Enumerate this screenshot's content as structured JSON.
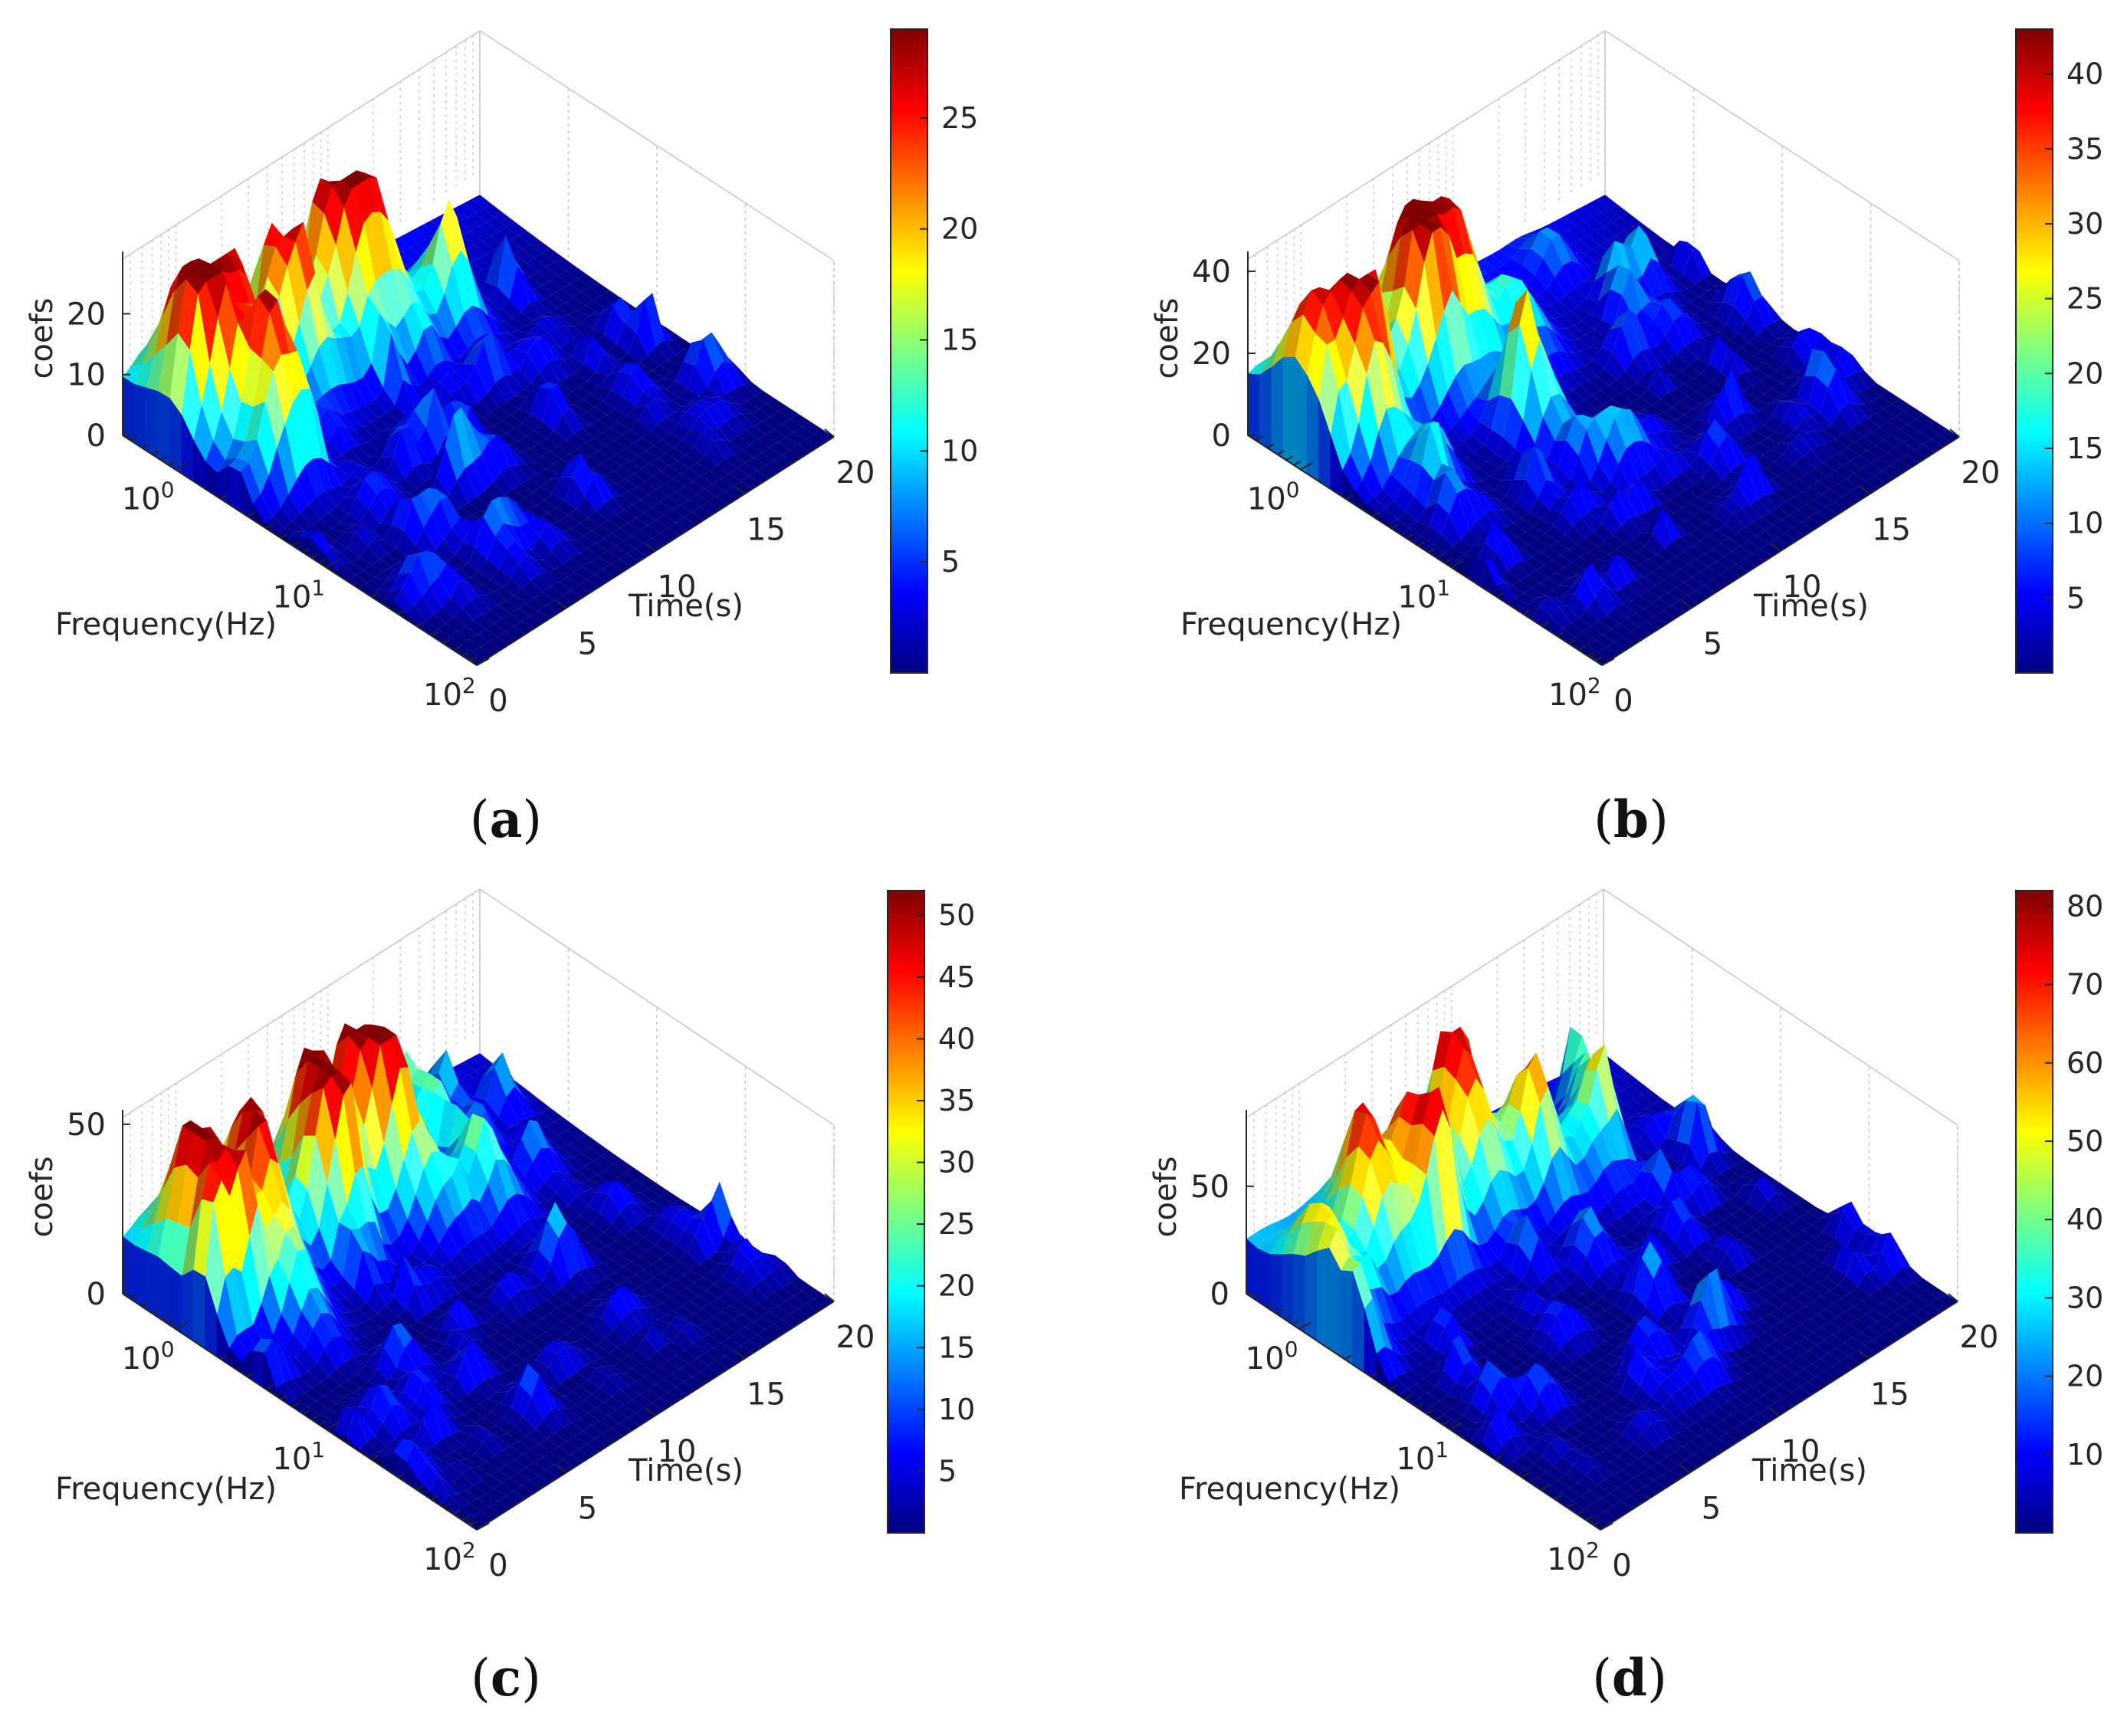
{
  "colormap": "jet",
  "jet_stops": [
    "#00007f",
    "#0000ff",
    "#007fff",
    "#00ffff",
    "#7fff7f",
    "#ffff00",
    "#ff7f00",
    "#ff0000",
    "#7f0000"
  ],
  "chart_data": [
    {
      "type": "surface",
      "panel_label": "a",
      "xlabel": "Time(s)",
      "ylabel": "Frequency(Hz)",
      "zlabel": "coefs",
      "x_ticks": [
        "0",
        "5",
        "10",
        "15",
        "20"
      ],
      "xlim": [
        0,
        20
      ],
      "y_scale": "log",
      "y_ticks": [
        {
          "base": "10",
          "exp": "0"
        },
        {
          "base": "10",
          "exp": "1"
        },
        {
          "base": "10",
          "exp": "2"
        }
      ],
      "z_ticks": [
        "0",
        "10",
        "20"
      ],
      "zlim": [
        0,
        29
      ],
      "colorbar": {
        "ticks": [
          "5",
          "10",
          "15",
          "20",
          "25"
        ],
        "range": [
          0,
          29
        ]
      },
      "ridges": [
        {
          "t": 1.5,
          "f": 0.9,
          "z": 28
        },
        {
          "t": 3.5,
          "f": 0.95,
          "z": 22
        },
        {
          "t": 6.5,
          "f": 1.0,
          "z": 20
        },
        {
          "t": 9.5,
          "f": 1.0,
          "z": 26
        },
        {
          "t": 2.5,
          "f": 2.2,
          "z": 17
        },
        {
          "t": 11.0,
          "f": 1.2,
          "z": 14
        },
        {
          "t": 13.5,
          "f": 1.5,
          "z": 12
        }
      ]
    },
    {
      "type": "surface",
      "panel_label": "b",
      "xlabel": "Time(s)",
      "ylabel": "Frequency(Hz)",
      "zlabel": "coefs",
      "x_ticks": [
        "0",
        "5",
        "10",
        "15",
        "20"
      ],
      "xlim": [
        0,
        20
      ],
      "y_scale": "log",
      "y_ticks": [
        {
          "base": "10",
          "exp": "0"
        },
        {
          "base": "10",
          "exp": "1"
        },
        {
          "base": "10",
          "exp": "2"
        }
      ],
      "z_ticks": [
        "0",
        "20",
        "40"
      ],
      "zlim": [
        0,
        43
      ],
      "colorbar": {
        "ticks": [
          "5",
          "10",
          "15",
          "20",
          "25",
          "30",
          "35",
          "40"
        ],
        "range": [
          0,
          43
        ]
      },
      "ridges": [
        {
          "t": 0.8,
          "f": 0.95,
          "z": 30
        },
        {
          "t": 2.5,
          "f": 1.3,
          "z": 36
        },
        {
          "t": 6.5,
          "f": 1.0,
          "z": 42
        },
        {
          "t": 8.5,
          "f": 1.0,
          "z": 36
        },
        {
          "t": 11.0,
          "f": 1.3,
          "z": 16
        },
        {
          "t": 8.0,
          "f": 4.0,
          "z": 20
        }
      ]
    },
    {
      "type": "surface",
      "panel_label": "c",
      "xlabel": "Time(s)",
      "ylabel": "Frequency(Hz)",
      "zlabel": "coefs",
      "x_ticks": [
        "0",
        "5",
        "10",
        "15",
        "20"
      ],
      "xlim": [
        0,
        20
      ],
      "y_scale": "log",
      "y_ticks": [
        {
          "base": "10",
          "exp": "0"
        },
        {
          "base": "10",
          "exp": "1"
        },
        {
          "base": "10",
          "exp": "2"
        }
      ],
      "z_ticks": [
        "0",
        "50"
      ],
      "zlim": [
        0,
        52
      ],
      "colorbar": {
        "ticks": [
          "5",
          "10",
          "15",
          "20",
          "25",
          "30",
          "35",
          "40",
          "45",
          "50"
        ],
        "range": [
          0,
          52
        ]
      },
      "ridges": [
        {
          "t": 1.5,
          "f": 0.9,
          "z": 40
        },
        {
          "t": 4.5,
          "f": 0.95,
          "z": 44
        },
        {
          "t": 8.0,
          "f": 1.0,
          "z": 50
        },
        {
          "t": 10.5,
          "f": 1.0,
          "z": 48
        },
        {
          "t": 3.5,
          "f": 2.0,
          "z": 24
        },
        {
          "t": 11.5,
          "f": 2.0,
          "z": 22
        },
        {
          "t": 14.0,
          "f": 2.5,
          "z": 20
        }
      ]
    },
    {
      "type": "surface",
      "panel_label": "d",
      "xlabel": "Time(s)",
      "ylabel": "Frequency(Hz)",
      "zlabel": "coefs",
      "x_ticks": [
        "0",
        "5",
        "10",
        "15",
        "20"
      ],
      "xlim": [
        0,
        20
      ],
      "y_scale": "log",
      "y_ticks": [
        {
          "base": "10",
          "exp": "0"
        },
        {
          "base": "10",
          "exp": "1"
        },
        {
          "base": "10",
          "exp": "2"
        }
      ],
      "z_ticks": [
        "0",
        "50"
      ],
      "zlim": [
        0,
        82
      ],
      "colorbar": {
        "ticks": [
          "10",
          "20",
          "30",
          "40",
          "50",
          "60",
          "70",
          "80"
        ],
        "range": [
          0,
          82
        ]
      },
      "ridges": [
        {
          "t": 1.0,
          "f": 1.1,
          "z": 44
        },
        {
          "t": 4.0,
          "f": 1.0,
          "z": 58
        },
        {
          "t": 6.5,
          "f": 1.0,
          "z": 66
        },
        {
          "t": 9.5,
          "f": 1.0,
          "z": 62
        },
        {
          "t": 12.0,
          "f": 1.2,
          "z": 40
        },
        {
          "t": 14.5,
          "f": 1.5,
          "z": 30
        }
      ]
    }
  ]
}
